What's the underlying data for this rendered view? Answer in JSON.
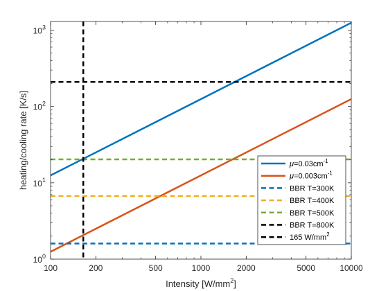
{
  "chart_data": {
    "type": "line",
    "xscale": "log",
    "yscale": "log",
    "xlim": [
      100,
      10000
    ],
    "ylim": [
      1,
      1300
    ],
    "x_ticks": [
      100,
      200,
      500,
      1000,
      2000,
      5000,
      10000
    ],
    "x_tick_labels": [
      "100",
      "200",
      "500",
      "1000",
      "2000",
      "5000",
      "10000"
    ],
    "y_ticks": [
      1,
      10,
      100,
      1000
    ],
    "y_tick_labels": [
      {
        "base": "10",
        "exp": "0"
      },
      {
        "base": "10",
        "exp": "1"
      },
      {
        "base": "10",
        "exp": "2"
      },
      {
        "base": "10",
        "exp": "3"
      }
    ],
    "xlabel": {
      "text": "Intensity [W/mm",
      "sup": "2",
      "close": "]"
    },
    "ylabel": "heating/cooling rate [K/s]",
    "grid": false,
    "legend_position": "bottom-right",
    "series": [
      {
        "label": "μ=0.03cm",
        "sup": "-1",
        "color": "#0072BD",
        "style": "solid",
        "kind": "line",
        "x": [
          100,
          10000
        ],
        "y": [
          12.5,
          1250
        ]
      },
      {
        "label": "μ=0.003cm",
        "sup": "-1",
        "color": "#D95319",
        "style": "solid",
        "kind": "line",
        "x": [
          100,
          10000
        ],
        "y": [
          1.25,
          125
        ]
      },
      {
        "label": "BBR T=300K",
        "color": "#0072BD",
        "style": "dashed",
        "kind": "hline",
        "y": 1.6
      },
      {
        "label": "BBR T=400K",
        "color": "#EDB120",
        "style": "dashed",
        "kind": "hline",
        "y": 6.7
      },
      {
        "label": "BBR T=500K",
        "color": "#77AC30",
        "style": "dashed",
        "kind": "hline",
        "y": 20.3
      },
      {
        "label": "BBR T=800K",
        "color": "#000000",
        "style": "dashed",
        "kind": "hline",
        "y": 210
      },
      {
        "label": "165 W/mm",
        "sup": "2",
        "color": "#000000",
        "style": "dashed",
        "kind": "vline",
        "x": 165
      }
    ]
  }
}
